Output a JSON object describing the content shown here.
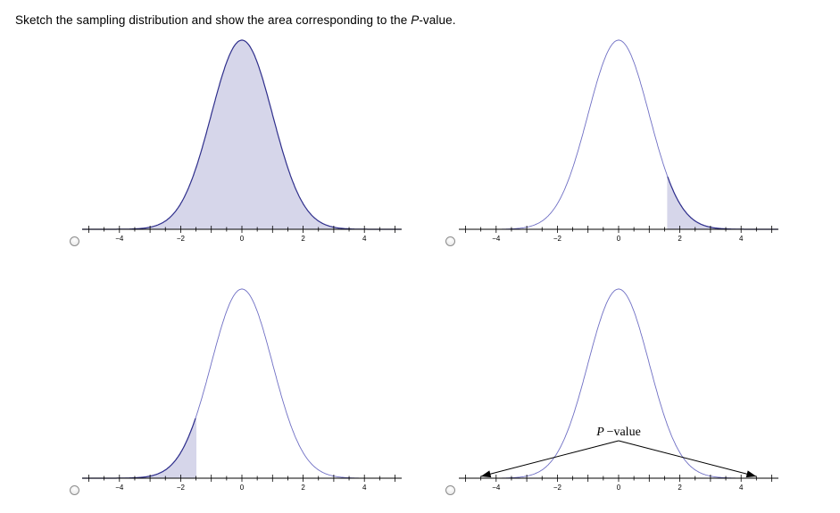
{
  "question": {
    "prefix": "Sketch the sampling distribution and show the area corresponding to the ",
    "p": "P",
    "suffix": "-value."
  },
  "colors": {
    "curve": "#3b3b9e",
    "fill": "#d6d6ea",
    "axis": "#000000"
  },
  "options": [
    {
      "id": "a",
      "shading": "full",
      "x_ticks": [
        "-4",
        "-2",
        "0",
        "2",
        "4"
      ]
    },
    {
      "id": "b",
      "shading": "right-tail",
      "tail_cut": 1.6,
      "x_ticks": [
        "-4",
        "-2",
        "0",
        "2",
        "4"
      ]
    },
    {
      "id": "c",
      "shading": "left-tail",
      "tail_cut": -1.5,
      "x_ticks": [
        "-4",
        "-2",
        "0",
        "2",
        "4"
      ]
    },
    {
      "id": "d",
      "shading": "arrows",
      "arrow_targets": [
        -4.5,
        4.5
      ],
      "annotation": "P −value",
      "x_ticks": [
        "-4",
        "-2",
        "0",
        "2",
        "4"
      ]
    }
  ],
  "chart_data": [
    {
      "type": "area",
      "curve": "standard-normal",
      "xlim": [
        -5.2,
        5.2
      ],
      "shaded": "entire curve"
    },
    {
      "type": "area",
      "curve": "standard-normal",
      "xlim": [
        -5.2,
        5.2
      ],
      "shaded": "right tail",
      "cut": 1.6
    },
    {
      "type": "area",
      "curve": "standard-normal",
      "xlim": [
        -5.2,
        5.2
      ],
      "shaded": "left tail",
      "cut": -1.5
    },
    {
      "type": "line",
      "curve": "standard-normal",
      "xlim": [
        -5.2,
        5.2
      ],
      "shaded": "none",
      "arrows_to": [
        -4.5,
        4.5
      ],
      "annotation": "P −value"
    }
  ]
}
